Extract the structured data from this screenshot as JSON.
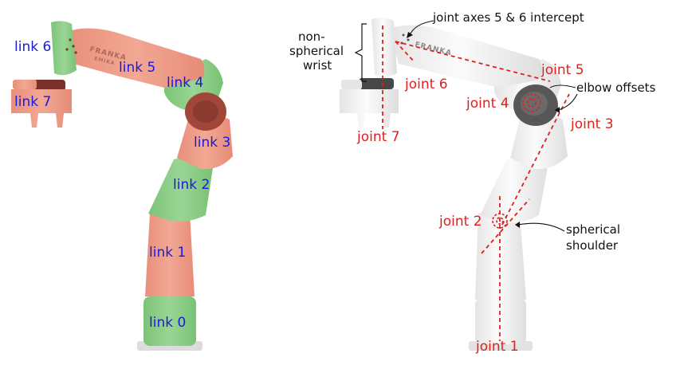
{
  "colors": {
    "link_label": "#1a1adb",
    "joint_label": "#e0201e",
    "annotation": "#111111",
    "salmon_link": "#ef9e8b",
    "green_link": "#8fcf8a",
    "robot_white": "#f3f3f3",
    "robot_grey": "#585858"
  },
  "left_panel": {
    "brand_text": "FRANKA",
    "brand_subtext": "EMIKA",
    "links": [
      {
        "id": "link-6",
        "label": "link 6",
        "color": "green"
      },
      {
        "id": "link-5",
        "label": "link 5",
        "color": "salmon"
      },
      {
        "id": "link-4",
        "label": "link 4",
        "color": "green"
      },
      {
        "id": "link-7",
        "label": "link 7",
        "color": "salmon"
      },
      {
        "id": "link-3",
        "label": "link 3",
        "color": "salmon"
      },
      {
        "id": "link-2",
        "label": "link 2",
        "color": "green"
      },
      {
        "id": "link-1",
        "label": "link 1",
        "color": "salmon"
      },
      {
        "id": "link-0",
        "label": "link 0",
        "color": "green"
      }
    ]
  },
  "right_panel": {
    "brand_text": "FRANKA",
    "joints": [
      {
        "id": "joint-1",
        "label": "joint 1"
      },
      {
        "id": "joint-2",
        "label": "joint 2"
      },
      {
        "id": "joint-3",
        "label": "joint 3"
      },
      {
        "id": "joint-4",
        "label": "joint 4"
      },
      {
        "id": "joint-5",
        "label": "joint 5"
      },
      {
        "id": "joint-6",
        "label": "joint 6"
      },
      {
        "id": "joint-7",
        "label": "joint 7"
      }
    ],
    "annotations": {
      "intercept": "joint axes 5 & 6 intercept",
      "non_spherical_line1": "non-",
      "non_spherical_line2": "spherical",
      "non_spherical_line3": "wrist",
      "elbow_offsets": "elbow offsets",
      "spherical_line1": "spherical",
      "spherical_line2": "shoulder"
    }
  }
}
